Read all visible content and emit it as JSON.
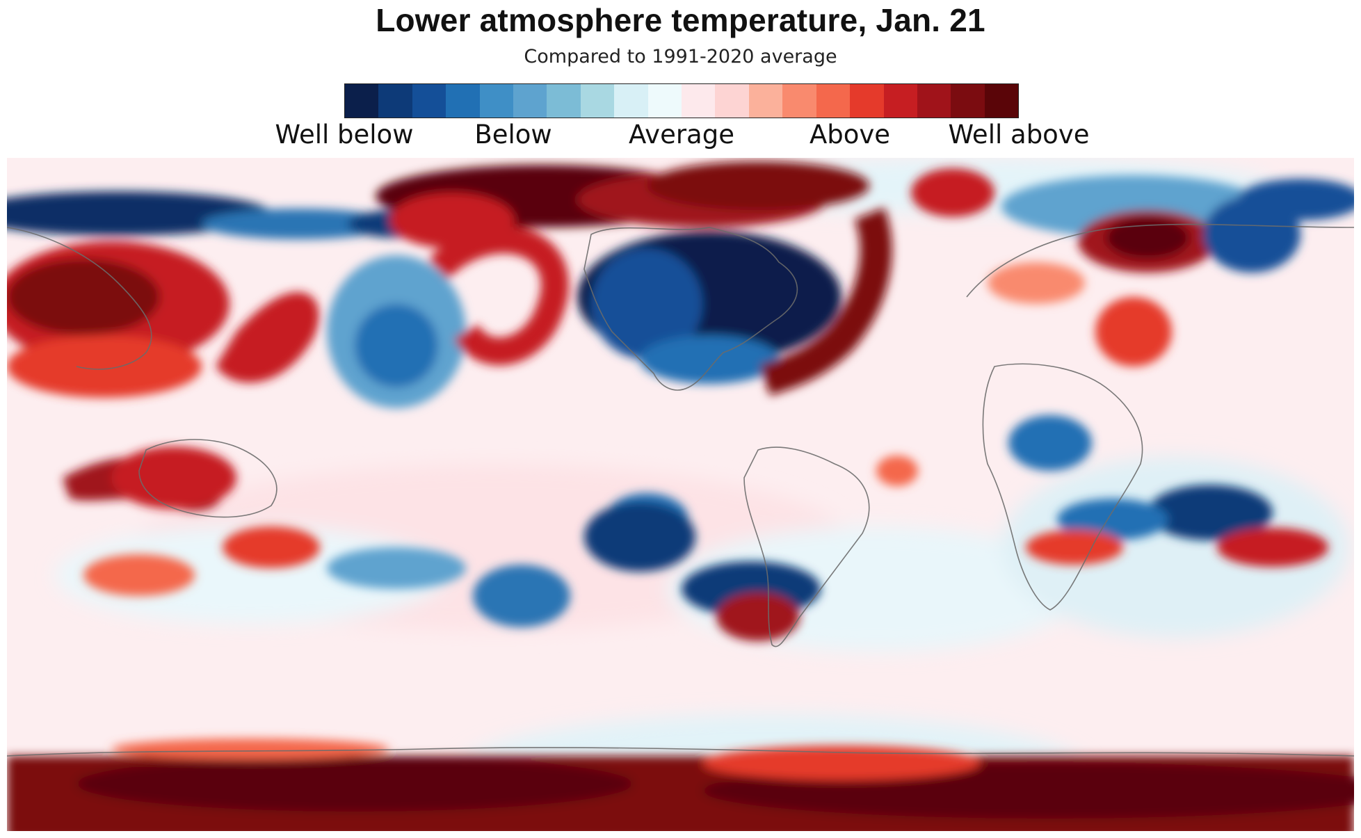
{
  "title": "Lower atmosphere temperature, Jan. 21",
  "subtitle": "Compared to 1991-2020 average",
  "legend": {
    "colors": [
      "#0b1f4b",
      "#0d3a78",
      "#144f98",
      "#2170b4",
      "#3f8fc6",
      "#5ea3cf",
      "#7cbcd6",
      "#a9d8e2",
      "#d8f0f6",
      "#eefafc",
      "#fde9ec",
      "#fdd4d3",
      "#fbb19b",
      "#f98a6e",
      "#f4684c",
      "#e53a2b",
      "#c61e22",
      "#a0131a",
      "#7b0c10",
      "#5a0508"
    ],
    "labels": [
      "Well below",
      "Below",
      "Average",
      "Above",
      "Well above"
    ]
  },
  "map": {
    "projection": "equirectangular",
    "palette": {
      "ocean_base": "#f4fbfd",
      "land_outline": "#6b6b6b"
    }
  }
}
